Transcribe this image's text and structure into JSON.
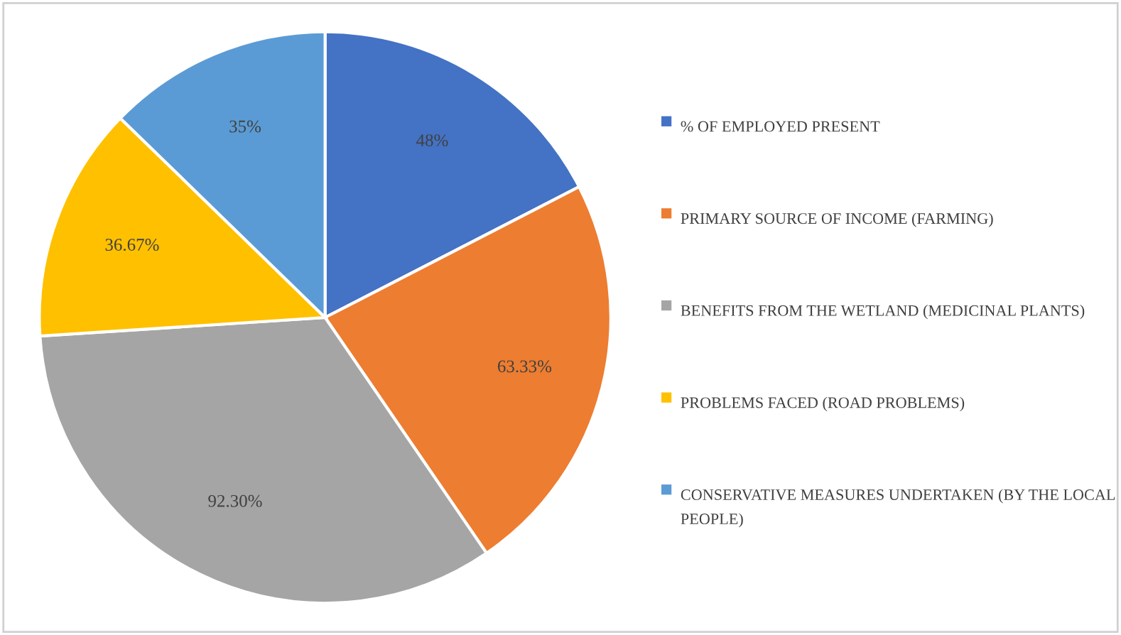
{
  "chart_data": {
    "type": "pie",
    "categories": [
      "% OF EMPLOYED PRESENT",
      "PRIMARY SOURCE OF INCOME (FARMING)",
      "BENEFITS FROM THE WETLAND (MEDICINAL PLANTS)",
      "PROBLEMS FACED (ROAD PROBLEMS)",
      "CONSERVATIVE MEASURES UNDERTAKEN (BY THE LOCAL PEOPLE)"
    ],
    "values": [
      48,
      63.33,
      92.3,
      36.67,
      35
    ],
    "value_labels": [
      "48%",
      "63.33%",
      "92.30%",
      "36.67%",
      "35%"
    ],
    "colors": [
      "#4472c4",
      "#ed7d31",
      "#a5a5a5",
      "#ffc000",
      "#5b9bd5"
    ],
    "legend": "right"
  }
}
